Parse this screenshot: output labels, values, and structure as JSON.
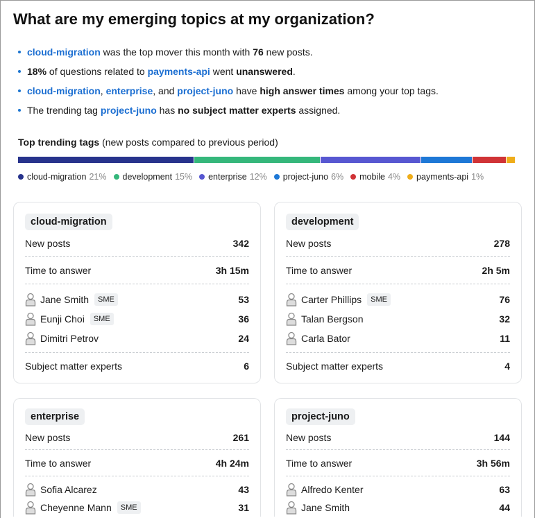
{
  "title": "What are my emerging topics at my organization?",
  "insights": [
    {
      "tag": "cloud-migration",
      "t1": " was the top mover this month with ",
      "b1": "76",
      "t2": " new posts."
    },
    {
      "b0": "18%",
      "t0": " of questions related to ",
      "tag": "payments-api",
      "t1": " went ",
      "b1": "unanswered",
      "t2": "."
    },
    {
      "tags": [
        "cloud-migration",
        "enterprise",
        "project-juno"
      ],
      "sep1": ", ",
      "sep2": ", and ",
      "t1": " have ",
      "b1": "high answer times",
      "t2": " among your top tags."
    },
    {
      "t0": "The trending tag ",
      "tag": "project-juno",
      "t1": " has ",
      "b1": "no subject matter experts",
      "t2": " assigned."
    }
  ],
  "trending": {
    "title": "Top trending tags",
    "subtitle": " (new posts compared to previous period)",
    "items": [
      {
        "name": "cloud-migration",
        "pct": "21%",
        "color": "#27338c",
        "value": 21
      },
      {
        "name": "development",
        "pct": "15%",
        "color": "#35b77b",
        "value": 15
      },
      {
        "name": "enterprise",
        "pct": "12%",
        "color": "#5757d1",
        "value": 12
      },
      {
        "name": "project-juno",
        "pct": "6%",
        "color": "#1e78d6",
        "value": 6
      },
      {
        "name": "mobile",
        "pct": "4%",
        "color": "#d03336",
        "value": 4
      },
      {
        "name": "payments-api",
        "pct": "1%",
        "color": "#efad1a",
        "value": 1
      }
    ]
  },
  "labels": {
    "new_posts": "New posts",
    "time_to_answer": "Time to answer",
    "sme_count": "Subject matter experts",
    "sme_badge": "SME"
  },
  "cards": [
    {
      "tag": "cloud-migration",
      "new_posts": "342",
      "time": "3h 15m",
      "people": [
        {
          "name": "Jane Smith",
          "sme": true,
          "count": "53"
        },
        {
          "name": "Eunji Choi",
          "sme": true,
          "count": "36"
        },
        {
          "name": "Dimitri Petrov",
          "sme": false,
          "count": "24"
        }
      ],
      "smes": "6"
    },
    {
      "tag": "development",
      "new_posts": "278",
      "time": "2h 5m",
      "people": [
        {
          "name": "Carter Phillips",
          "sme": true,
          "count": "76"
        },
        {
          "name": "Talan Bergson",
          "sme": false,
          "count": "32"
        },
        {
          "name": "Carla Bator",
          "sme": false,
          "count": "11"
        }
      ],
      "smes": "4"
    },
    {
      "tag": "enterprise",
      "new_posts": "261",
      "time": "4h 24m",
      "people": [
        {
          "name": "Sofia Alcarez",
          "sme": false,
          "count": "43"
        },
        {
          "name": "Cheyenne Mann",
          "sme": true,
          "count": "31"
        }
      ]
    },
    {
      "tag": "project-juno",
      "new_posts": "144",
      "time": "3h 56m",
      "people": [
        {
          "name": "Alfredo Kenter",
          "sme": false,
          "count": "63"
        },
        {
          "name": "Jane Smith",
          "sme": false,
          "count": "44"
        }
      ]
    }
  ]
}
